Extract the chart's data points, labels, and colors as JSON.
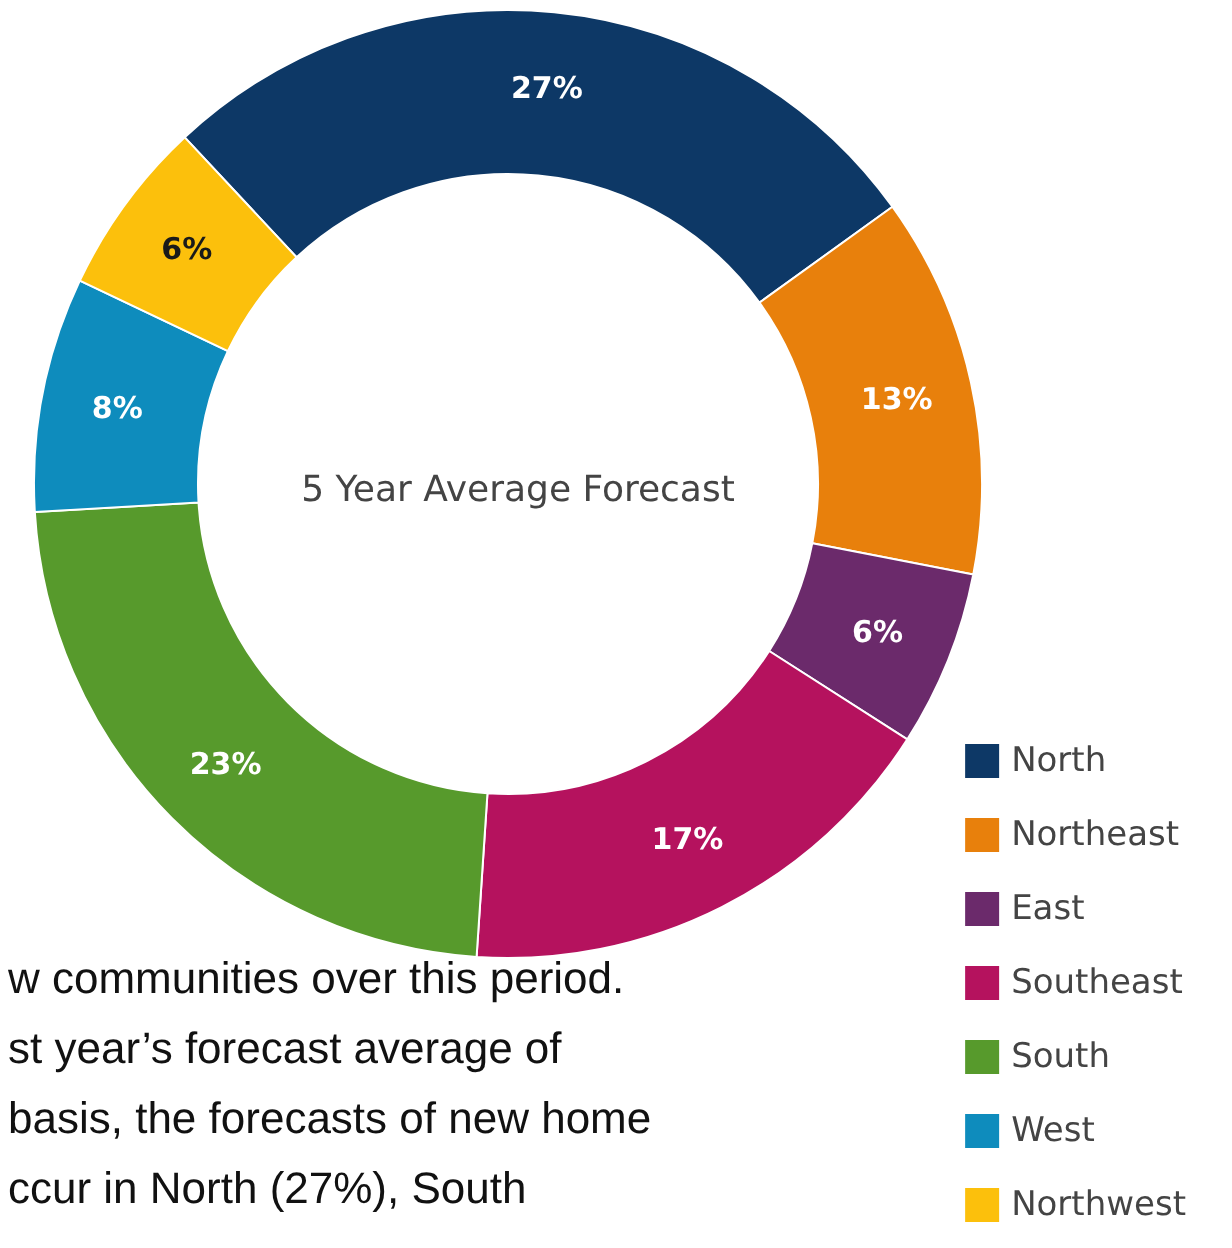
{
  "chart_data": {
    "type": "donut",
    "title": "5 Year Average Forecast",
    "categories": [
      "North",
      "Northeast",
      "East",
      "Southeast",
      "South",
      "West",
      "Northwest"
    ],
    "values": [
      27,
      13,
      6,
      17,
      23,
      8,
      6
    ],
    "colors": [
      "#0d3866",
      "#e8800c",
      "#6b2a6b",
      "#b5125e",
      "#579a2c",
      "#0e8cbd",
      "#fcc00c"
    ],
    "value_labels": [
      "27%",
      "13%",
      "6%",
      "17%",
      "23%",
      "8%",
      "6%"
    ],
    "legend": "bottom right",
    "annotations": [
      "w communities over this period.",
      "st year’s forecast average of",
      "basis, the forecasts of new home",
      "ccur in North (27%), South"
    ]
  }
}
